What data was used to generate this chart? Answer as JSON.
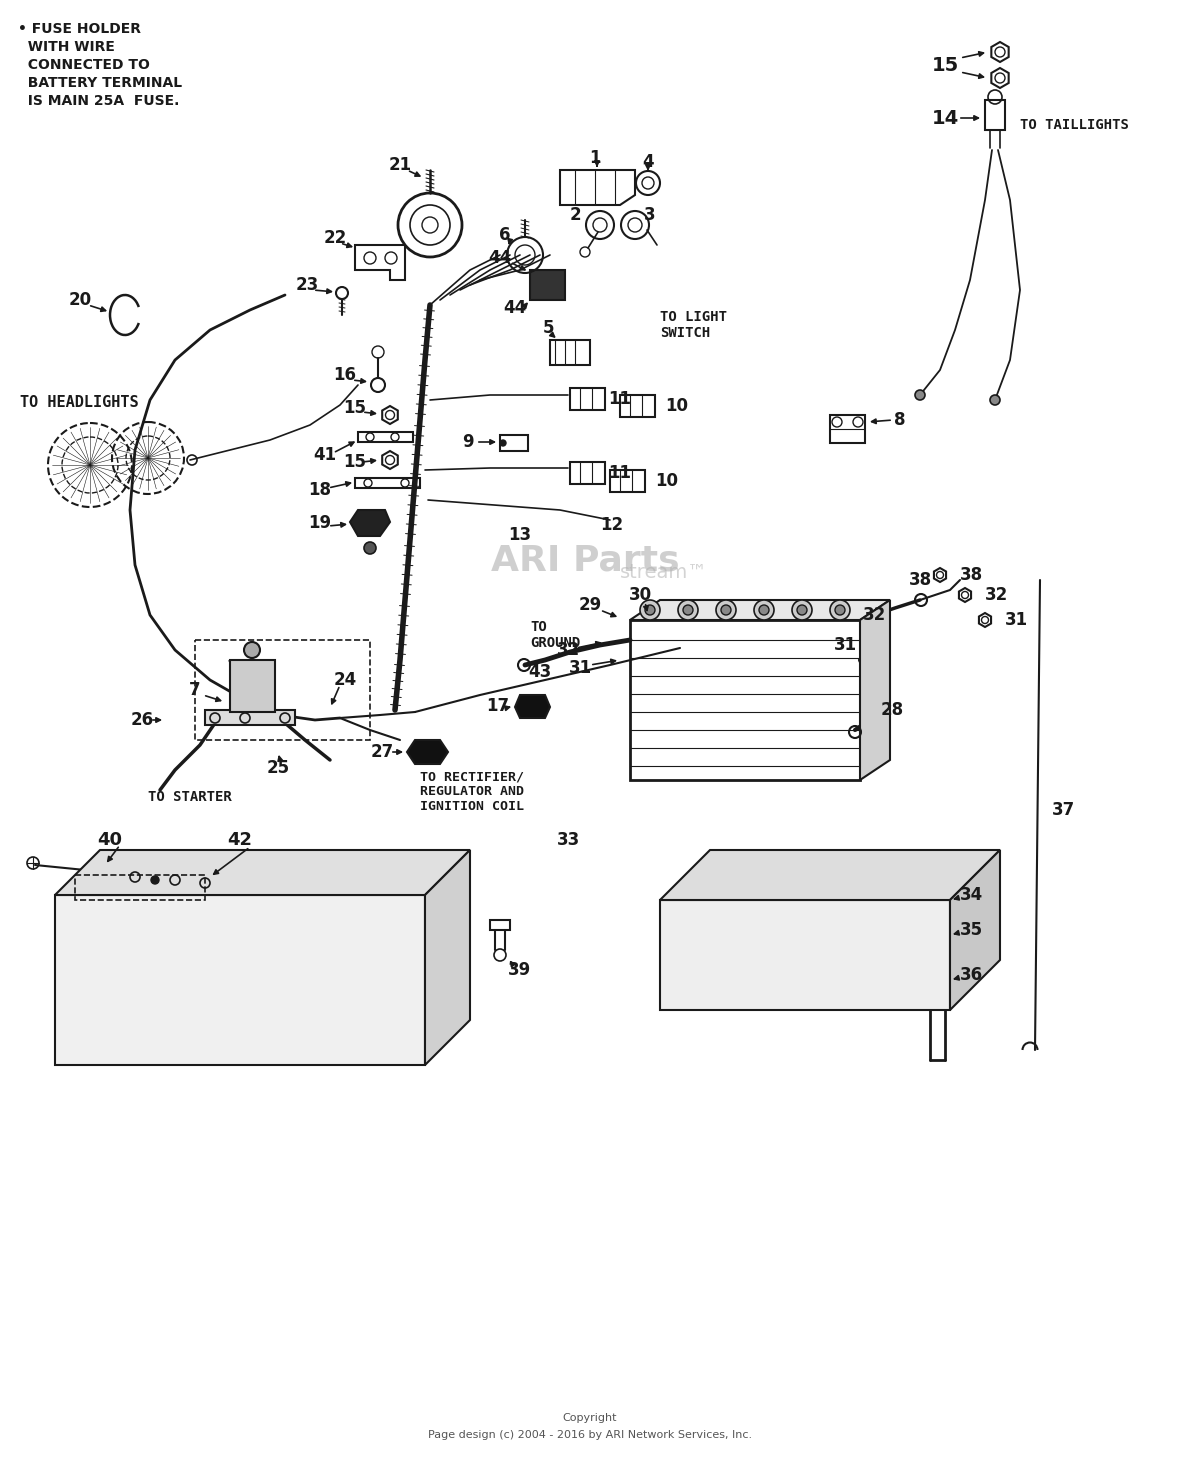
{
  "bg_color": "#ffffff",
  "line_color": "#1a1a1a",
  "label_color": "#000000",
  "watermark_color": "#b0b0b0",
  "figsize": [
    11.8,
    14.58
  ],
  "dpi": 100,
  "fuse_note_lines": [
    "• FUSE HOLDER",
    "  WITH WIRE",
    "  CONNECTED TO",
    "  BATTERY TERMINAL",
    "  IS MAIN 25A  FUSE."
  ]
}
